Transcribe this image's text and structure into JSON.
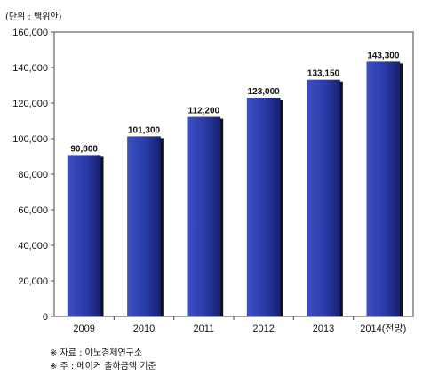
{
  "chart_data": {
    "type": "bar",
    "unit_label": "(단위 : 백위안)",
    "categories": [
      "2009",
      "2010",
      "2011",
      "2012",
      "2013",
      "2014(전망)"
    ],
    "values": [
      90800,
      101300,
      112200,
      123000,
      133150,
      143300
    ],
    "value_labels": [
      "90,800",
      "101,300",
      "112,200",
      "123,000",
      "133,150",
      "143,300"
    ],
    "y_ticks": [
      "0",
      "20,000",
      "40,000",
      "60,000",
      "80,000",
      "100,000",
      "120,000",
      "140,000",
      "160,000"
    ],
    "ylim": [
      0,
      160000
    ],
    "grid": false,
    "bar_color": "#2b3aa0"
  },
  "notes": {
    "source": "※ 자료 : 야노경제연구소",
    "remark": "※ 주 : 메이커 출하금액 기준"
  }
}
